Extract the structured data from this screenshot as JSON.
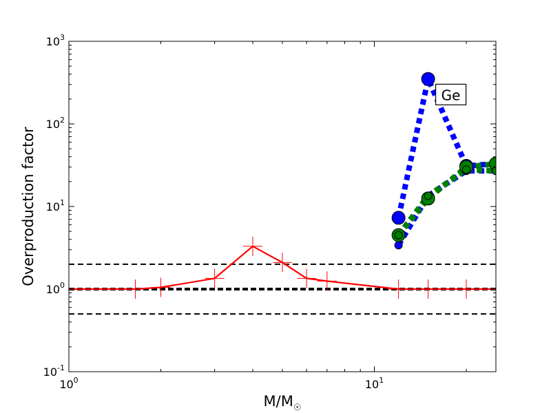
{
  "chart_data": {
    "type": "line",
    "xlabel": "M/M",
    "xlabel_subscript": "☉",
    "ylabel": "Overproduction factor",
    "xscale": "log",
    "yscale": "log",
    "xlim": [
      1,
      25
    ],
    "ylim": [
      0.1,
      1000
    ],
    "x_ticks": [
      {
        "value": 1,
        "base": "10",
        "exp": "0"
      },
      {
        "value": 10,
        "base": "10",
        "exp": "1"
      }
    ],
    "y_ticks": [
      {
        "value": 0.1,
        "base": "10",
        "exp": "-1"
      },
      {
        "value": 1,
        "base": "10",
        "exp": "0"
      },
      {
        "value": 10,
        "base": "10",
        "exp": "1"
      },
      {
        "value": 100,
        "base": "10",
        "exp": "2"
      },
      {
        "value": 1000,
        "base": "10",
        "exp": "3"
      }
    ],
    "reference_lines": [
      {
        "y": 2,
        "style": "dashed",
        "width": "thin"
      },
      {
        "y": 1,
        "style": "dashed",
        "width": "thick"
      },
      {
        "y": 0.5,
        "style": "dashed",
        "width": "thin"
      }
    ],
    "series": [
      {
        "color": "#ff0000",
        "style": "solid",
        "marker": "plus",
        "points": [
          [
            1,
            1.0
          ],
          [
            1.65,
            1.0
          ],
          [
            2,
            1.05
          ],
          [
            3,
            1.35
          ],
          [
            4,
            3.3
          ],
          [
            5,
            2.1
          ],
          [
            6,
            1.35
          ],
          [
            7,
            1.25
          ],
          [
            12,
            1.0
          ],
          [
            15,
            1.0
          ],
          [
            20,
            1.0
          ],
          [
            25,
            1.0
          ]
        ]
      },
      {
        "color": "#0000ff",
        "style": "dotted",
        "marker": "circle",
        "points": [
          [
            12,
            7.3
          ],
          [
            15,
            350
          ],
          [
            20,
            31
          ],
          [
            25,
            33
          ]
        ]
      },
      {
        "color": "#0000ff",
        "style": "dotted",
        "marker": "small-circle",
        "points": [
          [
            12,
            3.4
          ],
          [
            15,
            13.5
          ],
          [
            20,
            27
          ],
          [
            25,
            27
          ]
        ]
      },
      {
        "color": "#008000",
        "style": "dotted",
        "marker": "circle",
        "points": [
          [
            12,
            4.5
          ],
          [
            15,
            12.5
          ],
          [
            20,
            30
          ],
          [
            25,
            33
          ]
        ]
      },
      {
        "color": "#008000",
        "style": "dotted",
        "marker": "small-circle",
        "points": [
          [
            12,
            4.5
          ],
          [
            15,
            13.5
          ],
          [
            20,
            28
          ],
          [
            25,
            27
          ]
        ]
      }
    ],
    "annotation": {
      "text": "Ge",
      "x": 17.8,
      "y": 210
    }
  }
}
